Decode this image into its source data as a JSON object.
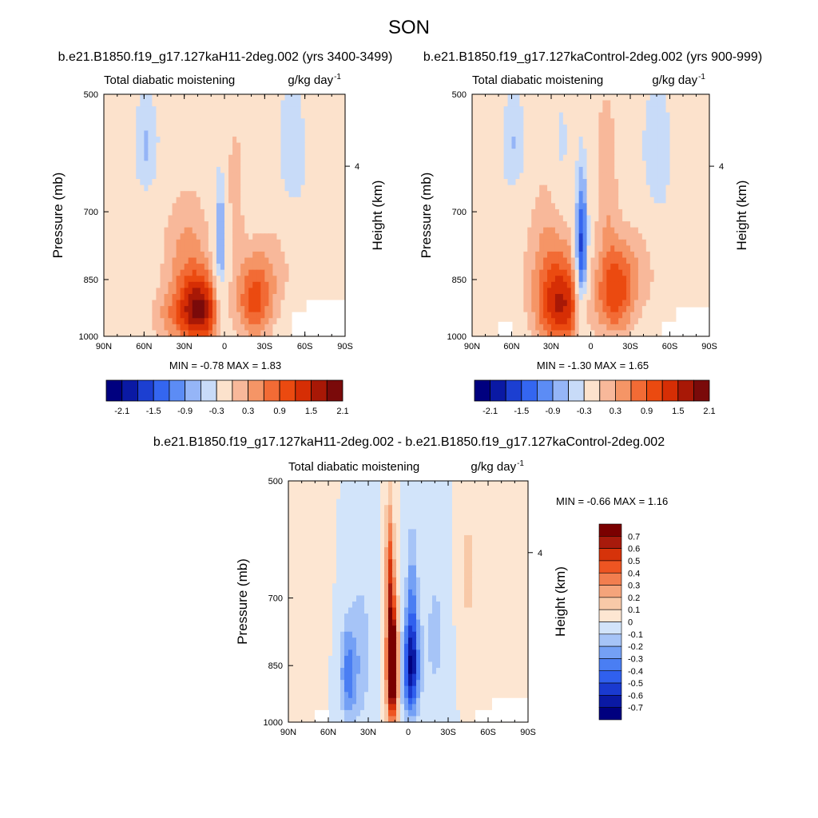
{
  "figure_title": "SON",
  "chart_data": [
    {
      "type": "heatmap",
      "case_title": "b.e21.B1850.f19_g17.127kaH11-2deg.002 (yrs 3400-3499)",
      "left_label": "Total diabatic moistening",
      "right_label": "g/kg day",
      "unit_exp": "-1",
      "ylabel": "Pressure (mb)",
      "ylabel_right": "Height (km)",
      "x_ticks": [
        "90N",
        "60N",
        "30N",
        "0",
        "30S",
        "60S",
        "90S"
      ],
      "y_ticks": [
        "500",
        "700",
        "850",
        "1000"
      ],
      "height_ticks": [
        "4"
      ],
      "stats": {
        "min_label": "MIN =",
        "min": "-0.78",
        "max_label": "MAX =",
        "max": "1.83"
      },
      "colorbar_labels": [
        "-2.1",
        "-1.5",
        "-0.9",
        "-0.3",
        "0.3",
        "0.9",
        "1.5",
        "2.1"
      ],
      "blobs": [
        {
          "lat": 18,
          "p": 930,
          "wlat": 14,
          "wp": 90,
          "v": 1.8
        },
        {
          "lat": -22,
          "p": 900,
          "wlat": 14,
          "wp": 110,
          "v": 1.3
        },
        {
          "lat": 28,
          "p": 820,
          "wlat": 20,
          "wp": 180,
          "v": 0.8
        },
        {
          "lat": 3,
          "p": 770,
          "wlat": 5,
          "wp": 150,
          "v": -1.1
        },
        {
          "lat": -8,
          "p": 650,
          "wlat": 8,
          "wp": 150,
          "v": 0.5
        },
        {
          "lat": 58,
          "p": 580,
          "wlat": 10,
          "wp": 90,
          "v": -0.6
        },
        {
          "lat": -50,
          "p": 600,
          "wlat": 12,
          "wp": 130,
          "v": -0.55
        },
        {
          "lat": 40,
          "p": 950,
          "wlat": 18,
          "wp": 70,
          "v": 0.5
        },
        {
          "lat": -40,
          "p": 800,
          "wlat": 18,
          "wp": 150,
          "v": 0.4
        }
      ]
    },
    {
      "type": "heatmap",
      "case_title": "b.e21.B1850.f19_g17.127kaControl-2deg.002 (yrs 900-999)",
      "left_label": "Total diabatic moistening",
      "right_label": "g/kg day",
      "unit_exp": "-1",
      "ylabel": "Pressure (mb)",
      "ylabel_right": "Height (km)",
      "x_ticks": [
        "90N",
        "60N",
        "30N",
        "0",
        "30S",
        "60S",
        "90S"
      ],
      "y_ticks": [
        "500",
        "700",
        "850",
        "1000"
      ],
      "height_ticks": [
        "4"
      ],
      "stats": {
        "min_label": "MIN =",
        "min": "-1.30",
        "max_label": "MAX =",
        "max": "1.65"
      },
      "colorbar_labels": [
        "-2.1",
        "-1.5",
        "-0.9",
        "-0.3",
        "0.3",
        "0.9",
        "1.5",
        "2.1"
      ],
      "blobs": [
        {
          "lat": 22,
          "p": 920,
          "wlat": 18,
          "wp": 110,
          "v": 1.5
        },
        {
          "lat": -18,
          "p": 880,
          "wlat": 14,
          "wp": 120,
          "v": 1.4
        },
        {
          "lat": 7,
          "p": 790,
          "wlat": 5,
          "wp": 170,
          "v": -1.9
        },
        {
          "lat": 30,
          "p": 800,
          "wlat": 22,
          "wp": 200,
          "v": 0.7
        },
        {
          "lat": -12,
          "p": 620,
          "wlat": 9,
          "wp": 160,
          "v": 0.6
        },
        {
          "lat": 22,
          "p": 600,
          "wlat": 7,
          "wp": 120,
          "v": -0.5
        },
        {
          "lat": 58,
          "p": 580,
          "wlat": 10,
          "wp": 90,
          "v": -0.6
        },
        {
          "lat": -50,
          "p": 600,
          "wlat": 12,
          "wp": 130,
          "v": -0.55
        },
        {
          "lat": -38,
          "p": 820,
          "wlat": 18,
          "wp": 140,
          "v": 0.45
        }
      ]
    },
    {
      "type": "heatmap",
      "case_title": "b.e21.B1850.f19_g17.127kaH11-2deg.002 - b.e21.B1850.f19_g17.127kaControl-2deg.002",
      "left_label": "Total diabatic moistening",
      "right_label": "g/kg day",
      "unit_exp": "-1",
      "ylabel": "Pressure (mb)",
      "ylabel_right": "Height (km)",
      "x_ticks": [
        "90N",
        "60N",
        "30N",
        "0",
        "30S",
        "60S",
        "90S"
      ],
      "y_ticks": [
        "500",
        "700",
        "850",
        "1000"
      ],
      "height_ticks": [
        "4"
      ],
      "stats": {
        "min_label": "MIN =",
        "min": "-0.66",
        "max_label": "MAX =",
        "max": "1.16"
      },
      "colorbar_labels": [
        "0.7",
        "0.6",
        "0.5",
        "0.4",
        "0.3",
        "0.2",
        "0.1",
        "0",
        "-0.1",
        "-0.2",
        "-0.3",
        "-0.4",
        "-0.5",
        "-0.6",
        "-0.7"
      ],
      "blobs": [
        {
          "lat": 12,
          "p": 850,
          "wlat": 4,
          "wp": 150,
          "v": 1.1
        },
        {
          "lat": 14,
          "p": 640,
          "wlat": 3,
          "wp": 120,
          "v": 0.4
        },
        {
          "lat": -2,
          "p": 860,
          "wlat": 6,
          "wp": 120,
          "v": -0.65
        },
        {
          "lat": -3,
          "p": 700,
          "wlat": 4,
          "wp": 140,
          "v": -0.25
        },
        {
          "lat": 45,
          "p": 870,
          "wlat": 6,
          "wp": 120,
          "v": -0.35
        },
        {
          "lat": 70,
          "p": 600,
          "wlat": 7,
          "wp": 200,
          "v": 0.1
        },
        {
          "lat": -45,
          "p": 650,
          "wlat": 8,
          "wp": 180,
          "v": 0.12
        },
        {
          "lat": 35,
          "p": 820,
          "wlat": 8,
          "wp": 200,
          "v": -0.15
        },
        {
          "lat": -20,
          "p": 780,
          "wlat": 10,
          "wp": 200,
          "v": -0.12
        }
      ]
    }
  ]
}
